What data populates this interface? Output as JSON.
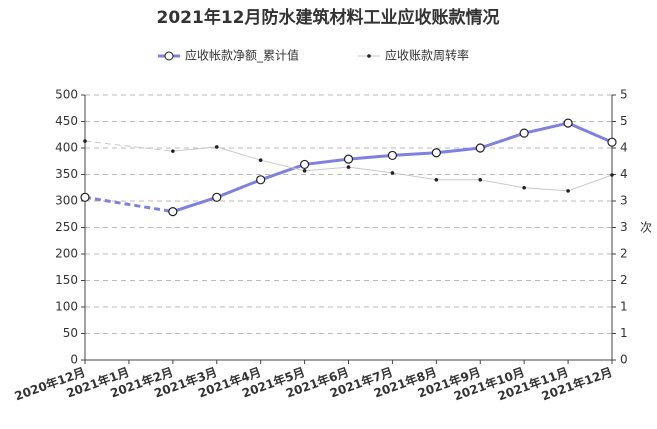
{
  "chart_data": {
    "type": "line",
    "title": "2021年12月防水建筑材料工业应收账款情况",
    "categories": [
      "2020年12月",
      "2021年1月",
      "2021年2月",
      "2021年3月",
      "2021年4月",
      "2021年5月",
      "2021年6月",
      "2021年7月",
      "2021年8月",
      "2021年9月",
      "2021年10月",
      "2021年11月",
      "2021年12月"
    ],
    "series": [
      {
        "name": "应收帐款净额_累计值",
        "color": "#8080e0",
        "values": [
          307,
          null,
          280,
          307,
          340,
          369,
          379,
          386,
          391,
          400,
          428,
          447,
          411
        ]
      },
      {
        "name": "应收账款周转率",
        "color": "#c8c8c8",
        "axis": "y2",
        "values": [
          4.13,
          null,
          3.94,
          4.02,
          3.77,
          3.57,
          3.64,
          3.53,
          3.4,
          3.4,
          3.25,
          3.19,
          3.49
        ]
      }
    ],
    "ylim": [
      0,
      500
    ],
    "yticks": [
      0,
      50,
      100,
      150,
      200,
      250,
      300,
      350,
      400,
      450,
      500
    ],
    "y2lim": [
      0,
      5
    ],
    "y2ticks": [
      0,
      {
        "value": 0.5,
        "label": "1"
      },
      1,
      {
        "value": 1.5,
        "label": "2"
      },
      2,
      {
        "value": 2.5,
        "label": "3"
      },
      3,
      {
        "value": 3.5,
        "label": "4"
      },
      4,
      {
        "value": 4.5,
        "label": "5"
      },
      5
    ],
    "y2label": "次",
    "grid": true
  }
}
